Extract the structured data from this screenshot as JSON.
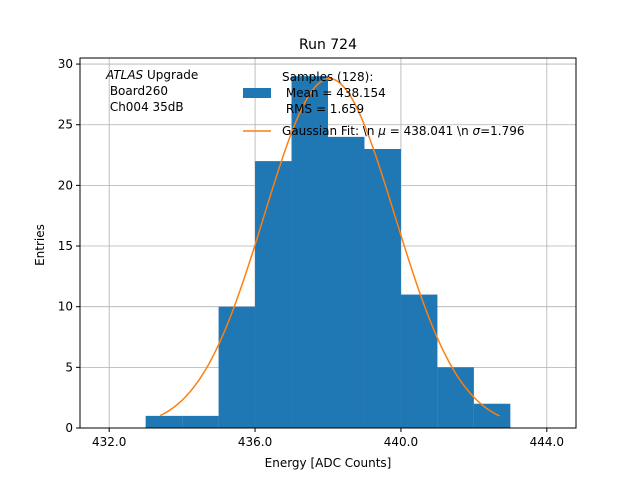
{
  "chart_data": {
    "type": "bar",
    "title": "Run 724",
    "xlabel": "Energy [ADC Counts]",
    "ylabel": "Entries",
    "xlim": [
      431.2,
      444.8
    ],
    "ylim": [
      0,
      30.5
    ],
    "x_ticks": [
      432,
      436,
      440,
      444
    ],
    "x_tick_labels": [
      "432.0",
      "436.0",
      "440.0",
      "444.0"
    ],
    "y_ticks": [
      0,
      5,
      10,
      15,
      20,
      25,
      30
    ],
    "y_tick_labels": [
      "0",
      "5",
      "10",
      "15",
      "20",
      "25",
      "30"
    ],
    "grid": true,
    "bin_edges": [
      433,
      434,
      435,
      436,
      437,
      438,
      439,
      440,
      441,
      442,
      443
    ],
    "counts": [
      1,
      1,
      10,
      22,
      29,
      24,
      23,
      11,
      5,
      2
    ],
    "fit": {
      "name": "Gaussian Fit: \\n μ = 438.041 \\n σ=1.796",
      "mu": 438.041,
      "sigma": 1.796,
      "amplitude": 28.8,
      "x_range": [
        433.4,
        442.7
      ]
    },
    "legend": {
      "position": "top-right",
      "samples_lines": [
        "Samples (128):",
        " Mean = 438.154",
        " RMS = 1.659"
      ],
      "fit_label_prefix": "Gaussian Fit: \\n ",
      "fit_mu_symbol": "μ",
      "fit_label_middle": " = 438.041 \\n ",
      "fit_sigma_symbol": "σ",
      "fit_label_suffix": "=1.796"
    },
    "annotation": {
      "position": "top-left",
      "experiment_italic": "ATLAS",
      "experiment_suffix": " Upgrade",
      "lines": [
        " Board260",
        " Ch004 35dB"
      ]
    },
    "colors": {
      "bar": "#1f77b4",
      "fit": "#ff7f0e",
      "grid": "#b0b0b0",
      "axes": "#000000"
    }
  }
}
